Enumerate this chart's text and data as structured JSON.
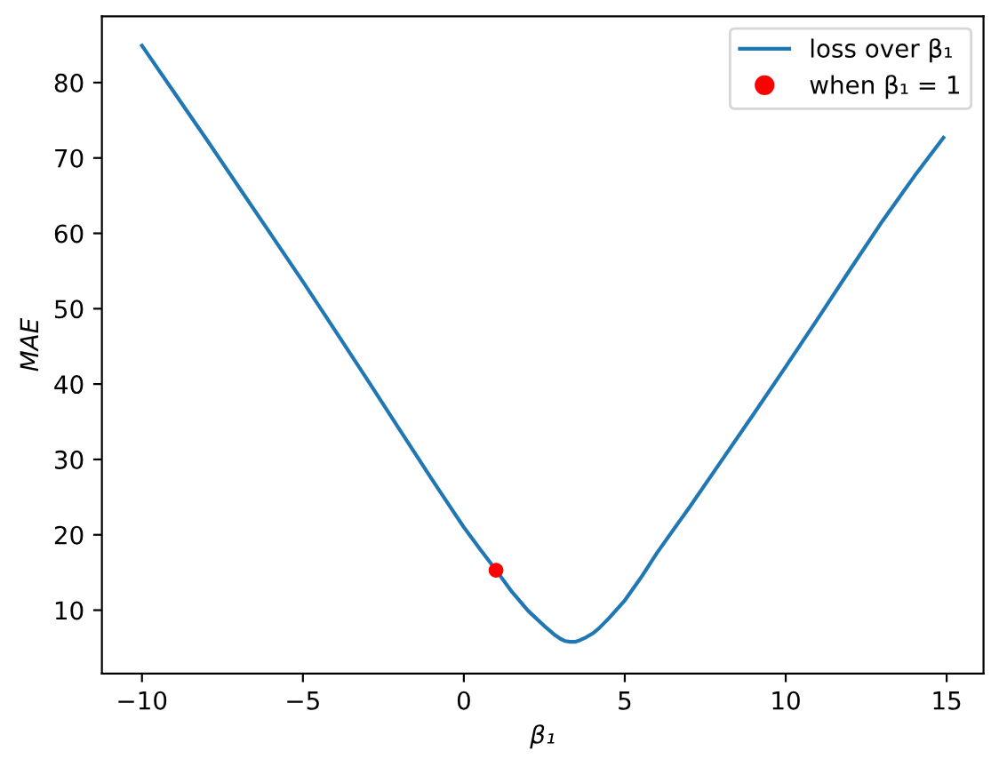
{
  "chart_data": {
    "type": "line",
    "xlabel": "β₁",
    "ylabel": "MAE",
    "series": [
      {
        "name": "loss over β₁",
        "color": "#1f77b4",
        "x": [
          -10,
          -9,
          -8,
          -7,
          -6,
          -5,
          -4,
          -3,
          -2,
          -1,
          0,
          0.5,
          1,
          1.5,
          2,
          2.25,
          2.5,
          2.8,
          3.0,
          3.15,
          3.3,
          3.45,
          3.6,
          3.8,
          4,
          4.2,
          4.5,
          5,
          5.5,
          6,
          7,
          8,
          9,
          10,
          11,
          12,
          13,
          14,
          14.9
        ],
        "values": [
          84.9,
          78.7,
          72.5,
          66.2,
          59.9,
          53.6,
          47.1,
          40.6,
          34.0,
          27.4,
          21.0,
          18.1,
          15.3,
          12.4,
          9.9,
          8.9,
          7.9,
          6.8,
          6.2,
          5.9,
          5.8,
          5.8,
          6.0,
          6.4,
          6.9,
          7.6,
          8.9,
          11.3,
          14.3,
          17.6,
          23.6,
          29.8,
          36.0,
          42.3,
          48.7,
          55.2,
          61.6,
          67.6,
          72.7
        ]
      },
      {
        "name": "when β₁ = 1",
        "type": "scatter",
        "color": "#ff0000",
        "marker": "circle",
        "x": [
          1
        ],
        "values": [
          15.3
        ]
      }
    ],
    "xlim": [
      -11.245,
      16.145
    ],
    "xticks": [
      {
        "value": -10,
        "label": "−10"
      },
      {
        "value": -5,
        "label": "−5"
      },
      0,
      5,
      10,
      15
    ],
    "ylim": [
      1.6,
      88.8
    ],
    "yticks": [
      10,
      20,
      30,
      40,
      50,
      60,
      70,
      80
    ],
    "grid": false,
    "legend": "top right"
  }
}
